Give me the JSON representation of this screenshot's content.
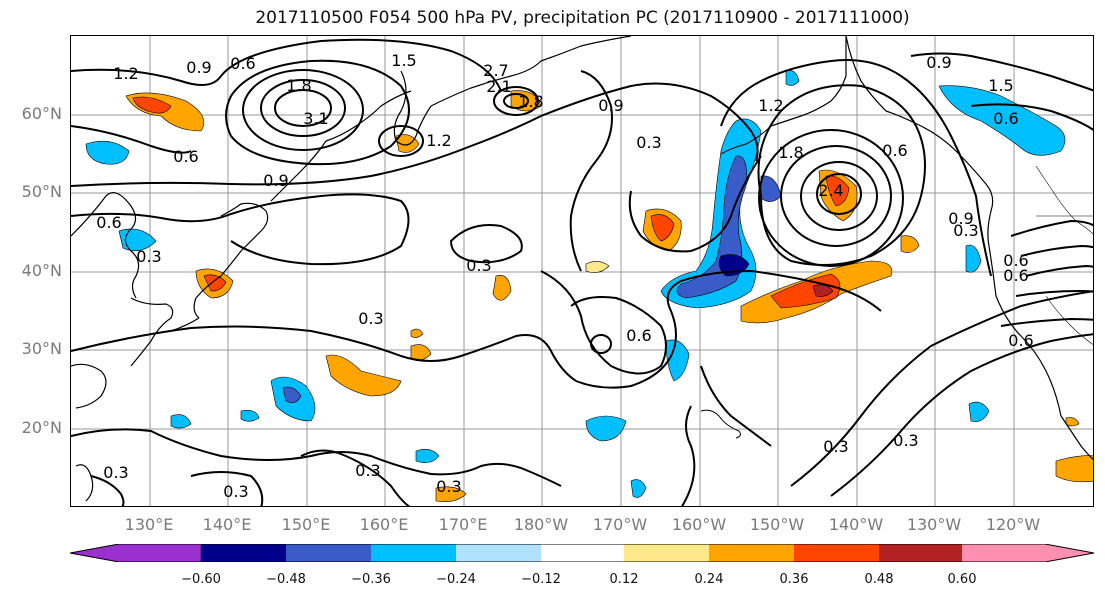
{
  "title": "2017110500 F054 500 hPa PV, precipitation PC (2017110900 - 2017111000)",
  "lat_labels": [
    "60°N",
    "50°N",
    "40°N",
    "30°N",
    "20°N"
  ],
  "lon_labels": [
    "130°E",
    "140°E",
    "150°E",
    "160°E",
    "170°E",
    "180°W",
    "170°W",
    "160°W",
    "150°W",
    "140°W",
    "130°W",
    "120°W"
  ],
  "colorbar": {
    "ticks": [
      "−0.60",
      "−0.48",
      "−0.36",
      "−0.24",
      "−0.12",
      "0.12",
      "0.24",
      "0.36",
      "0.48",
      "0.60"
    ],
    "colors": [
      "#9b30d0",
      "#00008b",
      "#3a5cc8",
      "#00bfff",
      "#b0e2ff",
      "#ffffff",
      "#ffe98a",
      "#ffa500",
      "#ff4500",
      "#b22222",
      "#ff8fb0"
    ]
  },
  "contour_labels": [
    "1.2",
    "0.6",
    "0.9",
    "1.5",
    "1.8",
    "2.7",
    "2.1",
    "1.8",
    "3.1",
    "1.2",
    "0.6",
    "0.9",
    "0.3",
    "0.3",
    "0.3",
    "0.3",
    "0.3",
    "0.3",
    "0.6",
    "0.9",
    "0.3",
    "0.3",
    "0.6",
    "1.2",
    "1.8",
    "2.4",
    "0.9",
    "0.6",
    "0.9",
    "1.5",
    "0.6",
    "0.6",
    "0.6",
    "0.3",
    "0.3",
    "0.3",
    "0.6"
  ]
}
